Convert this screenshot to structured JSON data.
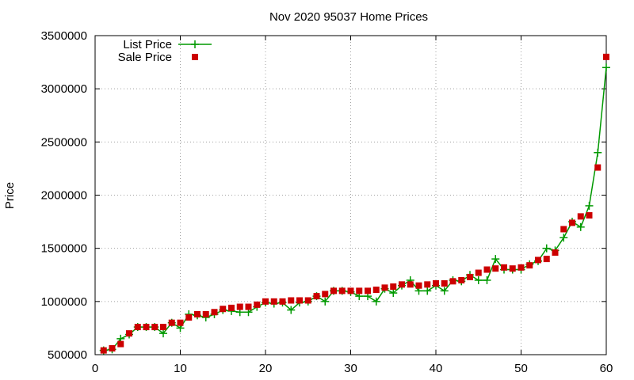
{
  "chart_data": {
    "type": "line",
    "title": "Nov 2020 95037 Home Prices",
    "xlabel": "",
    "ylabel": "Price",
    "xlim": [
      0,
      60
    ],
    "ylim": [
      500000,
      3500000
    ],
    "xticks": [
      "0",
      "10",
      "20",
      "30",
      "40",
      "50",
      "60"
    ],
    "yticks": [
      "500000",
      "1000000",
      "1500000",
      "2000000",
      "2500000",
      "3000000",
      "3500000"
    ],
    "grid": true,
    "legend_position": "top-left",
    "colors": {
      "list": "#009900",
      "sale": "#cc0000",
      "grid": "#a0a0a0"
    },
    "x": [
      1,
      2,
      3,
      4,
      5,
      6,
      7,
      8,
      9,
      10,
      11,
      12,
      13,
      14,
      15,
      16,
      17,
      18,
      19,
      20,
      21,
      22,
      23,
      24,
      25,
      26,
      27,
      28,
      29,
      30,
      31,
      32,
      33,
      34,
      35,
      36,
      37,
      38,
      39,
      40,
      41,
      42,
      43,
      44,
      45,
      46,
      47,
      48,
      49,
      50,
      51,
      52,
      53,
      54,
      55,
      56,
      57,
      58,
      59,
      60
    ],
    "series": [
      {
        "name": "List Price",
        "marker": "plus",
        "line": true,
        "values": [
          540000,
          550000,
          650000,
          690000,
          760000,
          760000,
          760000,
          700000,
          800000,
          750000,
          880000,
          870000,
          850000,
          880000,
          920000,
          910000,
          900000,
          900000,
          950000,
          990000,
          980000,
          990000,
          920000,
          990000,
          1000000,
          1050000,
          1000000,
          1100000,
          1100000,
          1090000,
          1050000,
          1050000,
          1000000,
          1120000,
          1080000,
          1150000,
          1200000,
          1100000,
          1100000,
          1150000,
          1100000,
          1200000,
          1190000,
          1250000,
          1200000,
          1200000,
          1400000,
          1300000,
          1300000,
          1300000,
          1350000,
          1380000,
          1500000,
          1480000,
          1600000,
          1750000,
          1700000,
          1900000,
          2400000,
          3200000
        ]
      },
      {
        "name": "Sale Price",
        "marker": "square",
        "line": false,
        "values": [
          540000,
          560000,
          600000,
          700000,
          760000,
          760000,
          760000,
          760000,
          800000,
          800000,
          850000,
          880000,
          880000,
          900000,
          930000,
          940000,
          950000,
          950000,
          970000,
          1000000,
          1000000,
          1000000,
          1010000,
          1010000,
          1010000,
          1050000,
          1070000,
          1100000,
          1100000,
          1100000,
          1100000,
          1100000,
          1110000,
          1130000,
          1140000,
          1160000,
          1160000,
          1150000,
          1160000,
          1170000,
          1170000,
          1190000,
          1200000,
          1230000,
          1270000,
          1300000,
          1310000,
          1320000,
          1310000,
          1320000,
          1340000,
          1390000,
          1400000,
          1460000,
          1680000,
          1740000,
          1800000,
          1810000,
          2260000,
          3300000
        ]
      }
    ]
  }
}
